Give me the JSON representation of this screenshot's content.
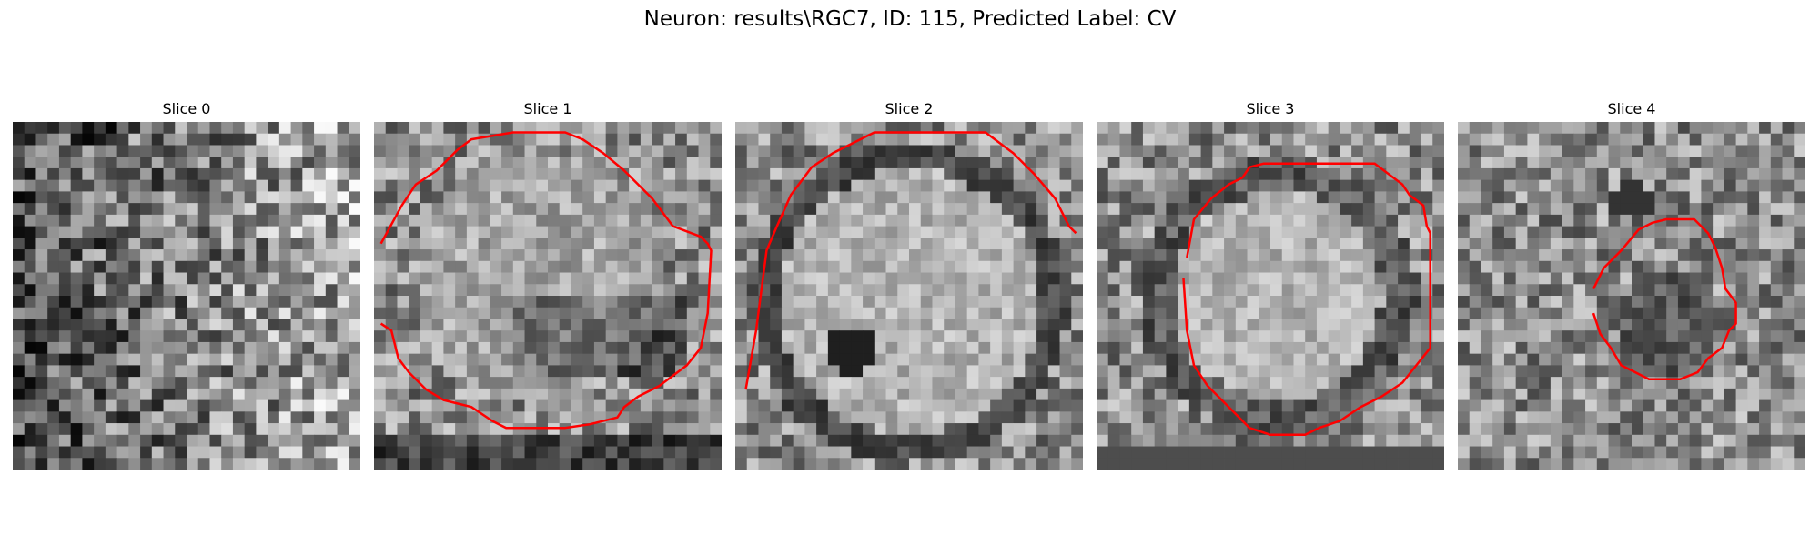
{
  "figure": {
    "title": "Neuron: results\\RGC7, ID: 115, Predicted Label: CV"
  },
  "panels": [
    {
      "title": "Slice 0",
      "contour_color": "#ff0000",
      "has_contour": false
    },
    {
      "title": "Slice 1",
      "contour_color": "#ff0000",
      "has_contour": true
    },
    {
      "title": "Slice 2",
      "contour_color": "#ff0000",
      "has_contour": true
    },
    {
      "title": "Slice 3",
      "contour_color": "#ff0000",
      "has_contour": true
    },
    {
      "title": "Slice 4",
      "contour_color": "#ff0000",
      "has_contour": true
    }
  ]
}
